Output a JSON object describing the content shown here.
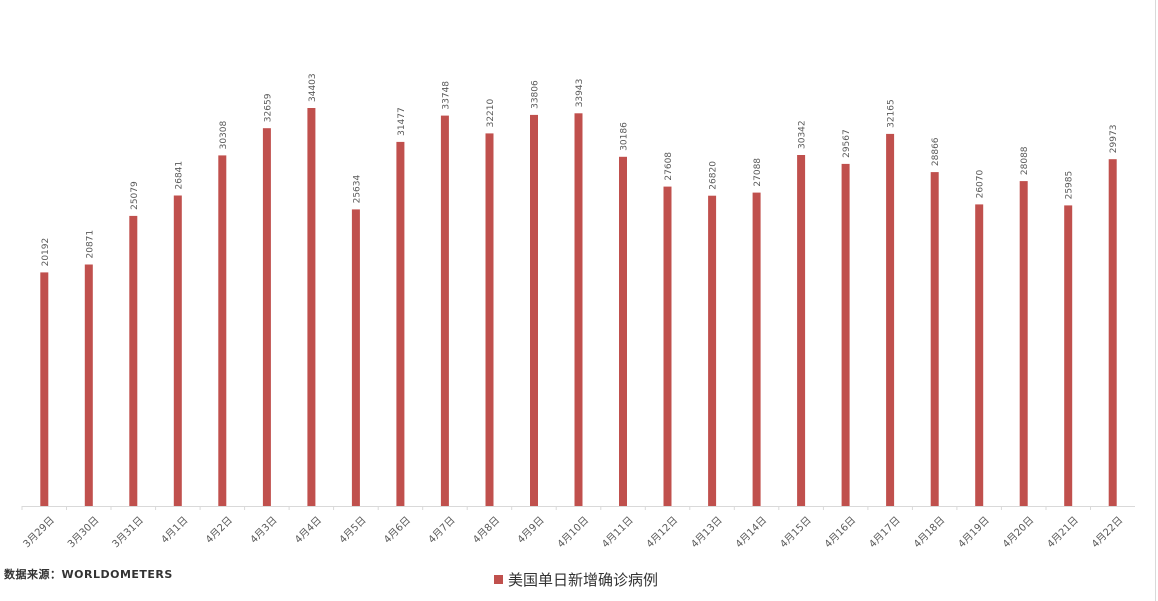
{
  "source_text": "数据来源：WORLDOMETERS",
  "chart_data": {
    "type": "bar",
    "title": "",
    "xlabel": "",
    "ylabel": "",
    "ylim": [
      0,
      36000
    ],
    "grid": false,
    "legend_position": "bottom",
    "bar_color": "#c0504d",
    "categories": [
      "3月29日",
      "3月30日",
      "3月31日",
      "4月1日",
      "4月2日",
      "4月3日",
      "4月4日",
      "4月5日",
      "4月6日",
      "4月7日",
      "4月8日",
      "4月9日",
      "4月10日",
      "4月11日",
      "4月12日",
      "4月13日",
      "4月14日",
      "4月15日",
      "4月16日",
      "4月17日",
      "4月18日",
      "4月19日",
      "4月20日",
      "4月21日",
      "4月22日"
    ],
    "series": [
      {
        "name": "美国单日新增确诊病例",
        "values": [
          20192,
          20871,
          25079,
          26841,
          30308,
          32659,
          34403,
          25634,
          31477,
          33748,
          32210,
          33806,
          33943,
          30186,
          27608,
          26820,
          27088,
          30342,
          29567,
          32165,
          28866,
          26070,
          28088,
          25985,
          29973
        ]
      }
    ]
  }
}
